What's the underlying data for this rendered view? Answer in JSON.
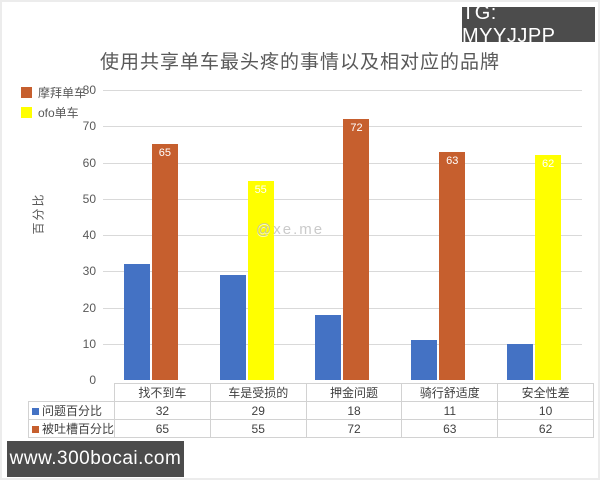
{
  "badges": {
    "tg": "TG: MYYJJPP",
    "site": "www.300bocai.com"
  },
  "watermark": "@xe.me",
  "chart_data": {
    "type": "bar",
    "title": "使用共享单车最头疼的事情以及相对应的品牌",
    "xlabel": "",
    "ylabel": "百分比",
    "ylim": [
      0,
      80
    ],
    "yticks": [
      80,
      70,
      60,
      50,
      40,
      30,
      20,
      10,
      0
    ],
    "grid": true,
    "legend_position": "top-left",
    "legend": [
      {
        "label": "摩拜单车",
        "color": "#c65f2e"
      },
      {
        "label": "ofo单车",
        "color": "#ffff00"
      }
    ],
    "categories": [
      "找不到车",
      "车是受损的",
      "押金问题",
      "骑行舒适度",
      "安全性差"
    ],
    "series": [
      {
        "name": "问题百分比",
        "marker_color": "#4472c4",
        "values": [
          32,
          29,
          18,
          11,
          10
        ],
        "bar_colors": [
          "#4472c4",
          "#4472c4",
          "#4472c4",
          "#4472c4",
          "#4472c4"
        ],
        "data_labels": false
      },
      {
        "name": "被吐槽百分比",
        "marker_color": "#c65f2e",
        "values": [
          65,
          55,
          72,
          63,
          62
        ],
        "bar_colors": [
          "#c65f2e",
          "#ffff00",
          "#c65f2e",
          "#c65f2e",
          "#ffff00"
        ],
        "data_labels": true
      }
    ],
    "colors": {
      "blue": "#4472c4",
      "orange": "#c65f2e",
      "yellow": "#ffff00",
      "gridline": "#d9d9d9",
      "text": "#595959",
      "table_border": "#d2d2d2",
      "badge_bg": "#4c4c4c"
    }
  }
}
